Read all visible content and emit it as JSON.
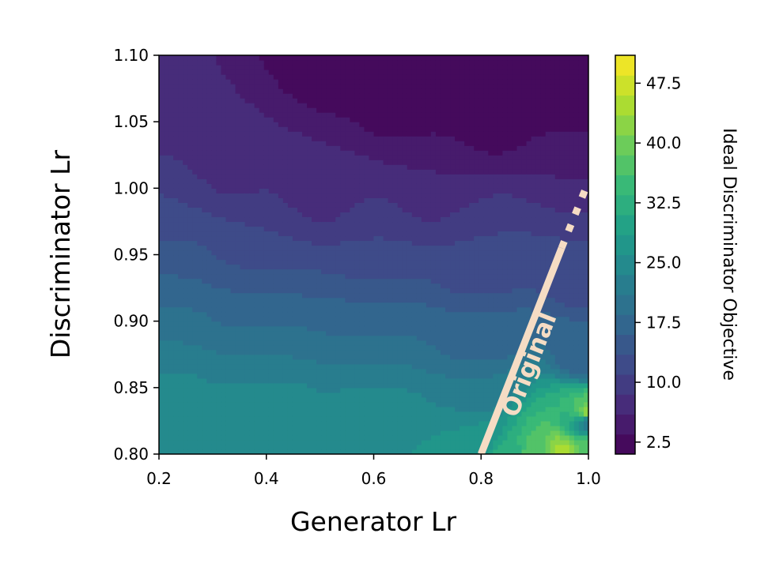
{
  "chart_data": {
    "type": "contourf",
    "xlabel": "Generator Lr",
    "ylabel": "Discriminator Lr",
    "xlim": [
      0.2,
      1.0
    ],
    "ylim": [
      0.8,
      1.1
    ],
    "xticks": [
      "0.2",
      "0.4",
      "0.6",
      "0.8",
      "1.0"
    ],
    "yticks": [
      "0.80",
      "0.85",
      "0.90",
      "0.95",
      "1.00",
      "1.05",
      "1.10"
    ],
    "colorbar": {
      "label": "Ideal Discriminator Objective",
      "min": 1.0,
      "max": 51.0,
      "levels": 20,
      "ticks": [
        "2.5",
        "10.0",
        "17.5",
        "25.0",
        "32.5",
        "40.0",
        "47.5"
      ],
      "tick_values": [
        2.5,
        10.0,
        17.5,
        25.0,
        32.5,
        40.0,
        47.5
      ],
      "colormap": "viridis"
    },
    "annotation": {
      "text": "Original",
      "color": "#f5dcc4",
      "line_solid": [
        [
          0.8,
          0.8
        ],
        [
          0.95,
          0.955
        ]
      ],
      "line_dotted": [
        [
          0.95,
          0.955
        ],
        [
          1.0,
          1.005
        ]
      ]
    },
    "contour_samples": [
      {
        "level": 1.0,
        "points": [
          [
            0.53,
            1.1
          ],
          [
            0.67,
            1.07
          ],
          [
            0.8,
            1.065
          ],
          [
            1.0,
            1.063
          ]
        ]
      },
      {
        "level": 6.0,
        "points": [
          [
            0.2,
            1.064
          ],
          [
            0.35,
            1.03
          ],
          [
            0.5,
            1.005
          ],
          [
            0.7,
            1.01
          ],
          [
            1.0,
            1.02
          ]
        ]
      },
      {
        "level": 11.0,
        "points": [
          [
            0.2,
            0.985
          ],
          [
            0.4,
            0.965
          ],
          [
            0.6,
            0.96
          ],
          [
            0.8,
            0.95
          ],
          [
            1.0,
            0.94
          ]
        ]
      },
      {
        "level": 16.0,
        "points": [
          [
            0.2,
            0.935
          ],
          [
            0.4,
            0.915
          ],
          [
            0.6,
            0.905
          ],
          [
            0.8,
            0.89
          ],
          [
            1.0,
            0.875
          ]
        ]
      },
      {
        "level": 21.0,
        "points": [
          [
            0.2,
            0.885
          ],
          [
            0.4,
            0.875
          ],
          [
            0.6,
            0.87
          ],
          [
            0.8,
            0.85
          ],
          [
            1.0,
            0.825
          ]
        ]
      },
      {
        "level": 26.0,
        "points": [
          [
            0.2,
            0.84
          ],
          [
            0.4,
            0.835
          ],
          [
            0.6,
            0.83
          ],
          [
            0.8,
            0.815
          ],
          [
            1.0,
            0.8
          ]
        ]
      }
    ]
  }
}
